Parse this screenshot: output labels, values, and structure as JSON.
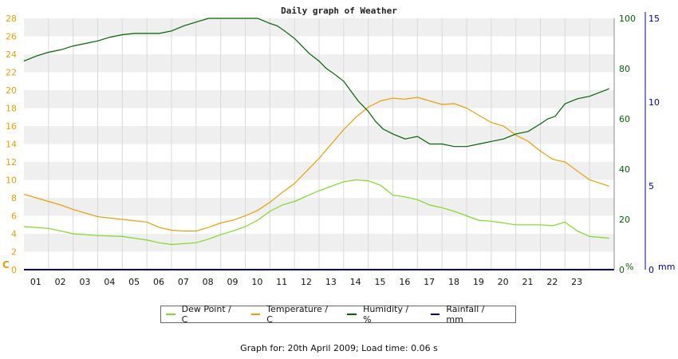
{
  "chart_data": {
    "type": "line",
    "title": "Daily graph of Weather",
    "x_tick_labels": [
      "01",
      "02",
      "03",
      "04",
      "05",
      "06",
      "07",
      "08",
      "09",
      "10",
      "11",
      "12",
      "13",
      "14",
      "15",
      "16",
      "17",
      "18",
      "19",
      "20",
      "21",
      "22",
      "23"
    ],
    "xlim": [
      0,
      24
    ],
    "axes": {
      "left": {
        "unit_label": "C",
        "ylim": [
          0,
          28
        ],
        "ticks": [
          "0",
          "2",
          "4",
          "6",
          "8",
          "10",
          "12",
          "14",
          "16",
          "18",
          "20",
          "22",
          "24",
          "26",
          "28"
        ],
        "color": "#e8a000"
      },
      "right1": {
        "unit_label": "%",
        "ylim": [
          0,
          100
        ],
        "ticks": [
          "0",
          "20",
          "40",
          "60",
          "80",
          "100"
        ],
        "color": "#006400"
      },
      "right2": {
        "unit_label": "mm",
        "ylim": [
          0,
          15
        ],
        "ticks": [
          "0",
          "5",
          "10",
          "15"
        ],
        "color": "#0000aa"
      }
    },
    "grid": true,
    "series": [
      {
        "name": "Dew Point / C",
        "axis": "left",
        "color": "#7ddc1f",
        "x": [
          0,
          1,
          1.5,
          2,
          3,
          4,
          5,
          5.5,
          6,
          7,
          7.5,
          8,
          8.5,
          9,
          9.5,
          10,
          10.5,
          11,
          11.5,
          12,
          12.5,
          13,
          13.5,
          14,
          14.5,
          15,
          15.5,
          16,
          16.5,
          17,
          17.5,
          18,
          18.5,
          19,
          19.5,
          20,
          21,
          21.5,
          22,
          22.5,
          23,
          23.8
        ],
        "y": [
          4.8,
          4.6,
          4.3,
          4.0,
          3.8,
          3.7,
          3.3,
          3.0,
          2.8,
          3.0,
          3.4,
          3.9,
          4.3,
          4.8,
          5.5,
          6.5,
          7.2,
          7.6,
          8.2,
          8.8,
          9.3,
          9.8,
          10.0,
          9.9,
          9.4,
          8.3,
          8.1,
          7.8,
          7.2,
          6.9,
          6.5,
          6.0,
          5.5,
          5.4,
          5.2,
          5.0,
          5.0,
          4.9,
          5.3,
          4.3,
          3.7,
          3.5
        ]
      },
      {
        "name": "Temperature / C",
        "axis": "left",
        "color": "#e8a000",
        "x": [
          0,
          0.5,
          1,
          1.5,
          2,
          2.5,
          3,
          4,
          5,
          5.5,
          6,
          6.5,
          7,
          7.5,
          8,
          8.5,
          9,
          9.5,
          10,
          10.5,
          11,
          11.5,
          12,
          12.5,
          13,
          13.5,
          14,
          14.5,
          15,
          15.5,
          16,
          16.5,
          17,
          17.5,
          18,
          18.5,
          19,
          19.5,
          20,
          20.5,
          21,
          21.5,
          22,
          22.5,
          23,
          23.8
        ],
        "y": [
          8.4,
          8.0,
          7.6,
          7.2,
          6.7,
          6.3,
          5.9,
          5.6,
          5.3,
          4.7,
          4.4,
          4.3,
          4.3,
          4.7,
          5.2,
          5.5,
          6.0,
          6.6,
          7.5,
          8.6,
          9.6,
          11.0,
          12.4,
          14.0,
          15.6,
          17.0,
          18.1,
          18.8,
          19.1,
          19.0,
          19.2,
          18.8,
          18.4,
          18.5,
          18.0,
          17.2,
          16.4,
          16.0,
          15.0,
          14.3,
          13.2,
          12.3,
          12.0,
          11.0,
          10.0,
          9.3
        ]
      },
      {
        "name": "Humidity / %",
        "axis": "right1",
        "color": "#006400",
        "x": [
          0,
          0.5,
          1,
          1.5,
          2,
          2.5,
          3,
          3.5,
          4,
          4.5,
          5,
          5.5,
          6,
          6.5,
          7,
          7.5,
          8,
          8.5,
          9,
          9.5,
          10,
          10.3,
          10.6,
          11,
          11.3,
          11.6,
          12,
          12.3,
          12.6,
          13,
          13.3,
          13.6,
          14,
          14.3,
          14.6,
          15,
          15.5,
          16,
          16.5,
          17,
          17.5,
          18,
          18.5,
          19,
          19.5,
          20,
          20.5,
          21,
          21.3,
          21.6,
          22,
          22.5,
          23,
          23.8
        ],
        "y": [
          83,
          85,
          86.5,
          87.5,
          89,
          90,
          91,
          92.5,
          93.5,
          94,
          94,
          94,
          95,
          97,
          98.5,
          100,
          100,
          100,
          100,
          100,
          98,
          97,
          95,
          92,
          89,
          86,
          83,
          80,
          78,
          75,
          71,
          67,
          63,
          59,
          56,
          54,
          52,
          53,
          50,
          50,
          49,
          49,
          50,
          51,
          52,
          54,
          55,
          58,
          60,
          61,
          66,
          68,
          69,
          72
        ]
      },
      {
        "name": "Rainfall / mm",
        "axis": "right2",
        "color": "#0000aa",
        "x": [
          0,
          23.8
        ],
        "y": [
          0,
          0
        ]
      }
    ]
  },
  "legend": {
    "dew_point": "Dew Point / C",
    "temperature": "Temperature / C",
    "humidity": "Humidity / %",
    "rainfall": "Rainfall / mm"
  },
  "footer": "Graph for: 20th April 2009; Load time: 0.06 s"
}
